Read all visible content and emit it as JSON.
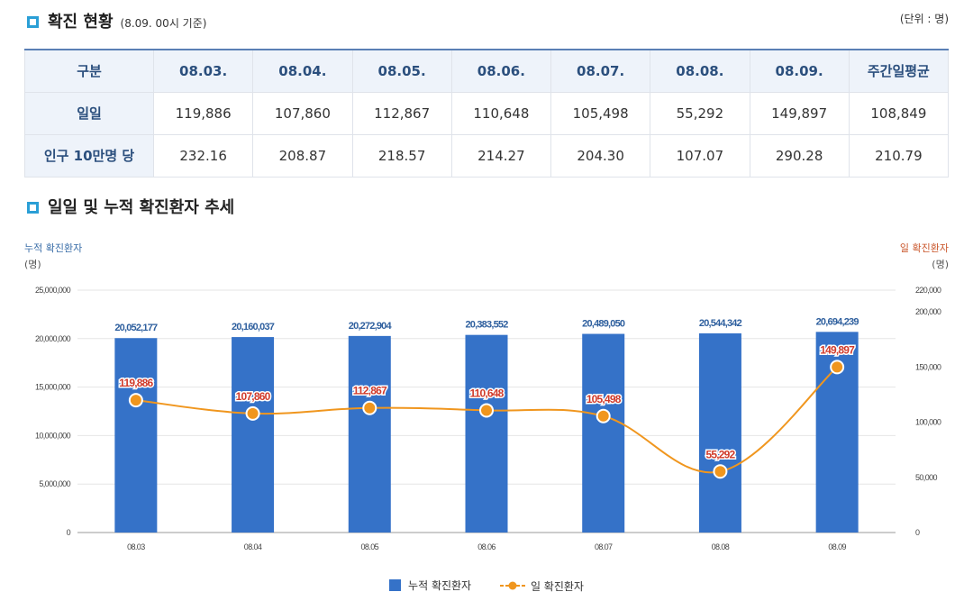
{
  "section1": {
    "title": "확진 현황",
    "subtitle": "(8.09. 00시 기준)",
    "unit": "(단위 : 명)"
  },
  "table": {
    "headers": [
      "구분",
      "08.03.",
      "08.04.",
      "08.05.",
      "08.06.",
      "08.07.",
      "08.08.",
      "08.09.",
      "주간일평균"
    ],
    "rows": [
      {
        "label": "일일",
        "values": [
          "119,886",
          "107,860",
          "112,867",
          "110,648",
          "105,498",
          "55,292",
          "149,897",
          "108,849"
        ]
      },
      {
        "label": "인구 10만명 당",
        "values": [
          "232.16",
          "208.87",
          "218.57",
          "214.27",
          "204.30",
          "107.07",
          "290.28",
          "210.79"
        ]
      }
    ]
  },
  "section2": {
    "title": "일일 및 누적 확진환자 추세"
  },
  "axes": {
    "left_title": "누적 확진환자",
    "left_unit": "(명)",
    "right_title": "일 확진환자",
    "right_unit": "(명)",
    "left_color": "#3a6ea8",
    "right_color": "#c9552a"
  },
  "chart_data": {
    "type": "bar",
    "categories": [
      "08.03",
      "08.04",
      "08.05",
      "08.06",
      "08.07",
      "08.08",
      "08.09"
    ],
    "series": [
      {
        "name": "누적 확진환자",
        "type": "bar",
        "axis": "left",
        "color": "#3572c8",
        "values": [
          20052177,
          20160037,
          20272904,
          20383552,
          20489050,
          20544342,
          20694239
        ],
        "labels": [
          "20,052,177",
          "20,160,037",
          "20,272,904",
          "20,383,552",
          "20,489,050",
          "20,544,342",
          "20,694,239"
        ]
      },
      {
        "name": "일 확진환자",
        "type": "line",
        "axis": "right",
        "color": "#f0961e",
        "values": [
          119886,
          107860,
          112867,
          110648,
          105498,
          55292,
          149897
        ],
        "labels": [
          "119,886",
          "107,860",
          "112,867",
          "110,648",
          "105,498",
          "55,292",
          "149,897"
        ]
      }
    ],
    "ylim_left": [
      0,
      25000000
    ],
    "left_ticks": [
      0,
      5000000,
      10000000,
      15000000,
      20000000,
      25000000
    ],
    "left_tick_labels": [
      "0",
      "5,000,000",
      "10,000,000",
      "15,000,000",
      "20,000,000",
      "25,000,000"
    ],
    "ylim_right": [
      0,
      220000
    ],
    "right_ticks": [
      0,
      50000,
      100000,
      150000,
      200000,
      220000
    ],
    "right_tick_labels": [
      "0",
      "50,000",
      "100,000",
      "150,000",
      "200,000",
      "220,000"
    ],
    "grid": true,
    "legend_position": "bottom-center"
  }
}
